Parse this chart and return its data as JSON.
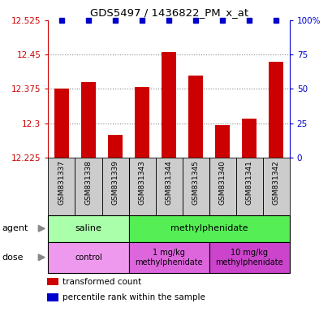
{
  "title": "GDS5497 / 1436822_PM_x_at",
  "samples": [
    "GSM831337",
    "GSM831338",
    "GSM831339",
    "GSM831343",
    "GSM831344",
    "GSM831345",
    "GSM831340",
    "GSM831341",
    "GSM831342"
  ],
  "bar_values": [
    12.375,
    12.39,
    12.275,
    12.38,
    12.455,
    12.405,
    12.295,
    12.31,
    12.435
  ],
  "percentile_values": [
    100,
    100,
    100,
    100,
    100,
    100,
    100,
    100,
    100
  ],
  "ylim": [
    12.225,
    12.525
  ],
  "yticks": [
    12.225,
    12.3,
    12.375,
    12.45,
    12.525
  ],
  "right_yticks": [
    0,
    25,
    50,
    75,
    100
  ],
  "right_ylim": [
    0,
    100
  ],
  "bar_color": "#cc0000",
  "percentile_color": "#0000cc",
  "grid_color": "#888888",
  "sample_box_color": "#cccccc",
  "agent_groups": [
    {
      "label": "saline",
      "start": 0,
      "end": 3,
      "color": "#aaffaa"
    },
    {
      "label": "methylphenidate",
      "start": 3,
      "end": 9,
      "color": "#55ee55"
    }
  ],
  "dose_groups": [
    {
      "label": "control",
      "start": 0,
      "end": 3,
      "color": "#ee99ee"
    },
    {
      "label": "1 mg/kg\nmethylphenidate",
      "start": 3,
      "end": 6,
      "color": "#dd66dd"
    },
    {
      "label": "10 mg/kg\nmethylphenidate",
      "start": 6,
      "end": 9,
      "color": "#cc44cc"
    }
  ],
  "legend_items": [
    {
      "label": "transformed count",
      "color": "#cc0000"
    },
    {
      "label": "percentile rank within the sample",
      "color": "#0000cc"
    }
  ],
  "left_axis_color": "#cc0000",
  "right_axis_color": "#0000cc",
  "group_dividers": [
    2.5,
    5.5
  ]
}
